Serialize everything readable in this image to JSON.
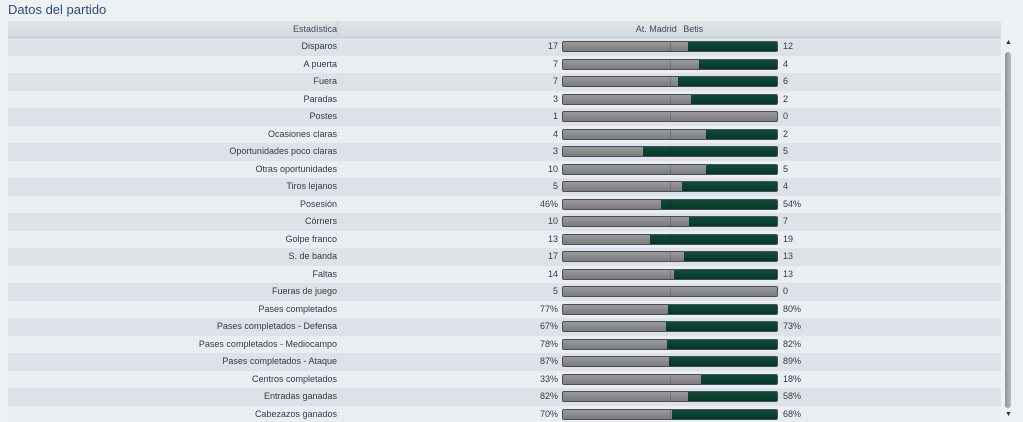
{
  "panel": {
    "title": "Datos del partido"
  },
  "header": {
    "stat_label": "Estadística",
    "home_team": "At. Madrid",
    "away_team": "Betis"
  },
  "colors": {
    "home_bar": "#8a8a8a",
    "away_bar": "#053626"
  },
  "scrollbar": {
    "up_icon": "chevron-up-icon",
    "down_icon": "chevron-down-icon"
  },
  "stats": [
    {
      "label": "Disparos",
      "home": "17",
      "away": "12",
      "share": 0.586
    },
    {
      "label": "A puerta",
      "home": "7",
      "away": "4",
      "share": 0.636
    },
    {
      "label": "Fuera",
      "home": "7",
      "away": "6",
      "share": 0.538
    },
    {
      "label": "Paradas",
      "home": "3",
      "away": "2",
      "share": 0.6
    },
    {
      "label": "Postes",
      "home": "1",
      "away": "0",
      "share": 1.0
    },
    {
      "label": "Ocasiones claras",
      "home": "4",
      "away": "2",
      "share": 0.667
    },
    {
      "label": "Oportunidades poco claras",
      "home": "3",
      "away": "5",
      "share": 0.375
    },
    {
      "label": "Otras oportunidades",
      "home": "10",
      "away": "5",
      "share": 0.667
    },
    {
      "label": "Tiros lejanos",
      "home": "5",
      "away": "4",
      "share": 0.556
    },
    {
      "label": "Posesión",
      "home": "46%",
      "away": "54%",
      "share": 0.46
    },
    {
      "label": "Córners",
      "home": "10",
      "away": "7",
      "share": 0.588
    },
    {
      "label": "Golpe franco",
      "home": "13",
      "away": "19",
      "share": 0.406
    },
    {
      "label": "S. de banda",
      "home": "17",
      "away": "13",
      "share": 0.567
    },
    {
      "label": "Faltas",
      "home": "14",
      "away": "13",
      "share": 0.519
    },
    {
      "label": "Fueras de juego",
      "home": "5",
      "away": "0",
      "share": 1.0
    },
    {
      "label": "Pases completados",
      "home": "77%",
      "away": "80%",
      "share": 0.49
    },
    {
      "label": "Pases completados - Defensa",
      "home": "67%",
      "away": "73%",
      "share": 0.479
    },
    {
      "label": "Pases completados - Mediocampo",
      "home": "78%",
      "away": "82%",
      "share": 0.488
    },
    {
      "label": "Pases completados - Ataque",
      "home": "87%",
      "away": "89%",
      "share": 0.494
    },
    {
      "label": "Centros completados",
      "home": "33%",
      "away": "18%",
      "share": 0.647
    },
    {
      "label": "Entradas ganadas",
      "home": "82%",
      "away": "58%",
      "share": 0.586
    },
    {
      "label": "Cabezazos ganados",
      "home": "70%",
      "away": "68%",
      "share": 0.507
    }
  ]
}
